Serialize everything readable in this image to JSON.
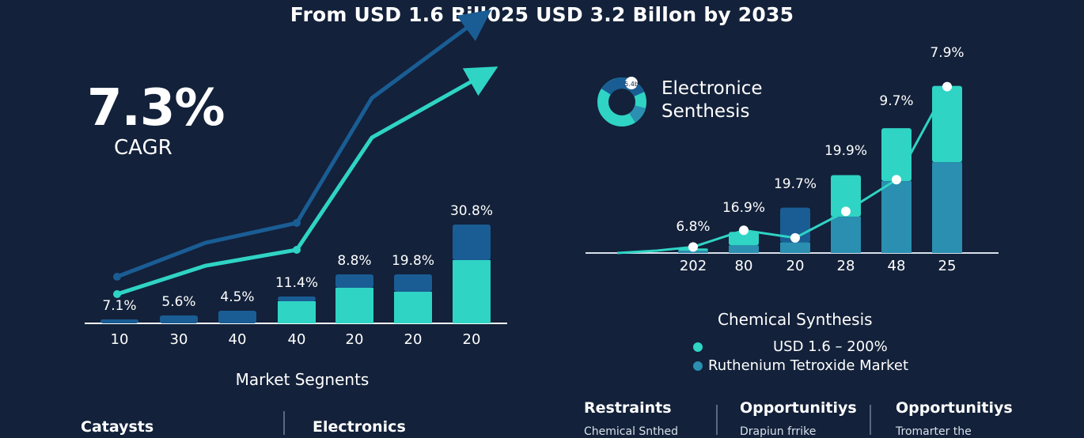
{
  "title": "From USD 1.6 Bill025 USD 3.2 Billon by 2035",
  "cagr": {
    "value": "7.3%",
    "label": "CAGR"
  },
  "colors": {
    "background": "#13213a",
    "teal": "#2fd4c4",
    "mid": "#2a8fb0",
    "dark": "#1a5d94"
  },
  "chart_data": [
    {
      "type": "bar",
      "title": "",
      "xlabel": "Market Segnents",
      "categories": [
        "10",
        "30",
        "40",
        "40",
        "20",
        "20",
        "20"
      ],
      "data_labels": [
        "7.1%",
        "5.6%",
        "4.5%",
        "11.4%",
        "8.8%",
        "19.8%",
        "30.8%"
      ],
      "series": [
        {
          "name": "teal",
          "values": [
            0,
            0,
            0,
            28,
            45,
            40,
            80
          ]
        },
        {
          "name": "dark",
          "values": [
            5,
            10,
            16,
            6,
            17,
            22,
            45
          ]
        }
      ],
      "ylim": [
        0,
        130
      ],
      "trend_lines": [
        {
          "name": "upper",
          "style": "arrow",
          "values": [
            59,
            102,
            127,
            285,
            385
          ]
        },
        {
          "name": "lower",
          "style": "arrow",
          "values": [
            37,
            73,
            93,
            235,
            315
          ]
        }
      ]
    },
    {
      "type": "bar",
      "title": "",
      "categories": [
        "202",
        "80",
        "20",
        "28",
        "48",
        "25"
      ],
      "data_labels": [
        "6.8%",
        "16.9%",
        "19.7%",
        "19.9%",
        "9.7%",
        "7.9%"
      ],
      "series": [
        {
          "name": "bottom",
          "values": [
            3,
            10,
            14,
            48,
            95,
            120
          ]
        },
        {
          "name": "top",
          "values": [
            3,
            18,
            46,
            55,
            70,
            101
          ]
        }
      ],
      "line": {
        "name": "trend",
        "values": [
          8,
          30,
          20,
          55,
          97,
          220
        ]
      },
      "ylim": [
        0,
        230
      ]
    }
  ],
  "donut": {
    "label": "Electronice Senthesis",
    "center_label": "5.4b"
  },
  "synthesis": {
    "title": "Chemical Synthesis",
    "legend": [
      {
        "label": "USD 1.6 – 200%",
        "color": "#2fd4c4"
      },
      {
        "label": "Ruthenium Tetroxide Market",
        "color": "#2a8fb0"
      }
    ]
  },
  "bottom_left": [
    {
      "heading": "Cataysts"
    },
    {
      "heading": "Electronics"
    }
  ],
  "bottom_right": [
    {
      "heading": "Restraints",
      "text": "Chemical Snthed"
    },
    {
      "heading": "Opportunitiys",
      "text": "Drapiun frrike"
    },
    {
      "heading": "Opportunitiys",
      "text": "Tromarter the"
    }
  ]
}
